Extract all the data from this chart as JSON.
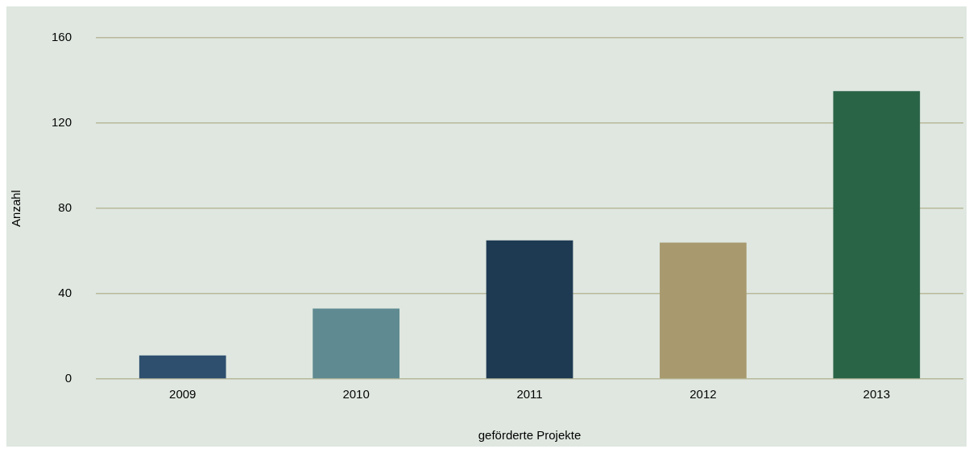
{
  "chart_data": {
    "type": "bar",
    "xlabel": "geförderte Projekte",
    "ylabel": "Anzahl",
    "categories": [
      "2009",
      "2010",
      "2011",
      "2012",
      "2013"
    ],
    "values": [
      11,
      33,
      65,
      64,
      135
    ],
    "colors": [
      "#2e4f6e",
      "#5f8a91",
      "#1e3a52",
      "#a89a6e",
      "#2a6447"
    ],
    "ylim": [
      0,
      160
    ],
    "yticks": [
      0,
      40,
      80,
      120,
      160
    ],
    "grid": "y",
    "legend": false
  }
}
